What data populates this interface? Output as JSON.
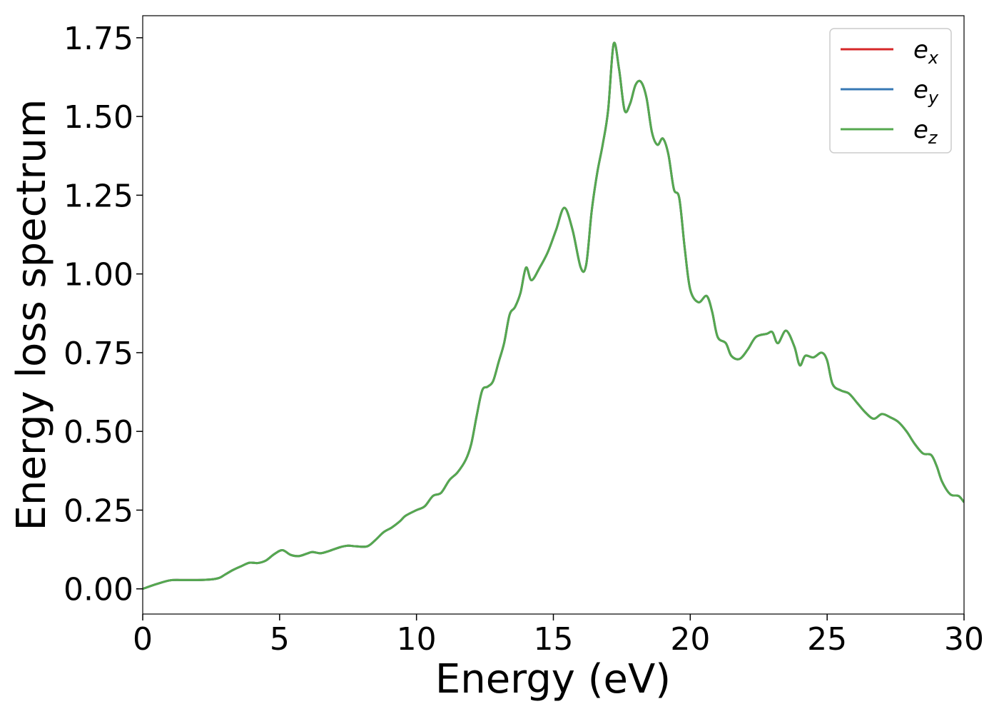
{
  "chart_data": {
    "type": "line",
    "title": "",
    "xlabel": "Energy (eV)",
    "ylabel": "Energy loss spectrum",
    "xlim": [
      0,
      30
    ],
    "ylim": [
      -0.08,
      1.82
    ],
    "xticks": [
      0,
      5,
      10,
      15,
      20,
      25,
      30
    ],
    "xtick_labels": [
      "0",
      "5",
      "10",
      "15",
      "20",
      "25",
      "30"
    ],
    "yticks": [
      0.0,
      0.25,
      0.5,
      0.75,
      1.0,
      1.25,
      1.5,
      1.75
    ],
    "ytick_labels": [
      "0.00",
      "0.25",
      "0.50",
      "0.75",
      "1.00",
      "1.25",
      "1.50",
      "1.75"
    ],
    "grid": false,
    "legend": {
      "placement": "top-right",
      "entries": [
        {
          "base": "e",
          "sub": "x",
          "color": "#d62728"
        },
        {
          "base": "e",
          "sub": "y",
          "color": "#3778b4"
        },
        {
          "base": "e",
          "sub": "z",
          "color": "#55a84f"
        }
      ]
    },
    "x": [
      0,
      0.5,
      1.0,
      1.5,
      2.0,
      2.5,
      2.8,
      3.0,
      3.3,
      3.6,
      3.9,
      4.2,
      4.5,
      4.8,
      5.1,
      5.4,
      5.7,
      6.0,
      6.2,
      6.5,
      6.8,
      7.2,
      7.5,
      7.8,
      8.2,
      8.5,
      8.8,
      9.1,
      9.4,
      9.6,
      10.0,
      10.3,
      10.6,
      10.9,
      11.2,
      11.5,
      11.8,
      12.0,
      12.2,
      12.4,
      12.6,
      12.8,
      13.0,
      13.2,
      13.4,
      13.6,
      13.8,
      14.0,
      14.2,
      14.5,
      14.8,
      15.1,
      15.4,
      15.7,
      16.0,
      16.2,
      16.4,
      16.6,
      16.8,
      17.0,
      17.2,
      17.4,
      17.6,
      17.8,
      18.0,
      18.2,
      18.4,
      18.6,
      18.8,
      19.0,
      19.2,
      19.4,
      19.6,
      19.8,
      20.0,
      20.3,
      20.6,
      20.8,
      21.0,
      21.3,
      21.5,
      21.8,
      22.1,
      22.4,
      22.8,
      23.0,
      23.2,
      23.5,
      23.8,
      24.0,
      24.2,
      24.5,
      24.8,
      25.0,
      25.2,
      25.5,
      25.8,
      26.1,
      26.4,
      26.7,
      27.0,
      27.3,
      27.6,
      27.9,
      28.2,
      28.5,
      28.8,
      29.0,
      29.2,
      29.5,
      29.8,
      30.0
    ],
    "series": [
      {
        "name": "e_x",
        "color": "#d62728",
        "values": [
          0.0,
          0.015,
          0.027,
          0.028,
          0.028,
          0.03,
          0.035,
          0.045,
          0.06,
          0.072,
          0.083,
          0.082,
          0.09,
          0.11,
          0.123,
          0.108,
          0.104,
          0.112,
          0.117,
          0.113,
          0.12,
          0.132,
          0.137,
          0.135,
          0.135,
          0.155,
          0.18,
          0.195,
          0.215,
          0.232,
          0.25,
          0.262,
          0.295,
          0.305,
          0.345,
          0.37,
          0.41,
          0.46,
          0.55,
          0.63,
          0.642,
          0.66,
          0.72,
          0.78,
          0.87,
          0.895,
          0.94,
          1.02,
          0.98,
          1.02,
          1.07,
          1.14,
          1.21,
          1.14,
          1.02,
          1.03,
          1.2,
          1.32,
          1.41,
          1.52,
          1.73,
          1.65,
          1.52,
          1.54,
          1.6,
          1.61,
          1.56,
          1.45,
          1.41,
          1.43,
          1.38,
          1.27,
          1.24,
          1.08,
          0.95,
          0.91,
          0.93,
          0.88,
          0.8,
          0.78,
          0.74,
          0.73,
          0.76,
          0.8,
          0.81,
          0.815,
          0.78,
          0.82,
          0.77,
          0.71,
          0.74,
          0.735,
          0.75,
          0.725,
          0.65,
          0.63,
          0.62,
          0.59,
          0.56,
          0.54,
          0.555,
          0.545,
          0.53,
          0.5,
          0.46,
          0.43,
          0.425,
          0.39,
          0.34,
          0.3,
          0.295,
          0.275
        ]
      },
      {
        "name": "e_y",
        "color": "#3778b4",
        "values": [
          0.0,
          0.015,
          0.027,
          0.028,
          0.028,
          0.03,
          0.035,
          0.045,
          0.06,
          0.072,
          0.083,
          0.082,
          0.09,
          0.11,
          0.123,
          0.108,
          0.104,
          0.112,
          0.117,
          0.113,
          0.12,
          0.132,
          0.137,
          0.135,
          0.135,
          0.155,
          0.18,
          0.195,
          0.215,
          0.232,
          0.25,
          0.262,
          0.295,
          0.305,
          0.345,
          0.37,
          0.41,
          0.46,
          0.55,
          0.63,
          0.642,
          0.66,
          0.72,
          0.78,
          0.87,
          0.895,
          0.94,
          1.02,
          0.98,
          1.02,
          1.07,
          1.14,
          1.21,
          1.14,
          1.02,
          1.03,
          1.2,
          1.32,
          1.41,
          1.52,
          1.73,
          1.65,
          1.52,
          1.54,
          1.6,
          1.61,
          1.56,
          1.45,
          1.41,
          1.43,
          1.38,
          1.27,
          1.24,
          1.08,
          0.95,
          0.91,
          0.93,
          0.88,
          0.8,
          0.78,
          0.74,
          0.73,
          0.76,
          0.8,
          0.81,
          0.815,
          0.78,
          0.82,
          0.77,
          0.71,
          0.74,
          0.735,
          0.75,
          0.725,
          0.65,
          0.63,
          0.62,
          0.59,
          0.56,
          0.54,
          0.555,
          0.545,
          0.53,
          0.5,
          0.46,
          0.43,
          0.425,
          0.39,
          0.34,
          0.3,
          0.295,
          0.275
        ]
      },
      {
        "name": "e_z",
        "color": "#55a84f",
        "values": [
          0.0,
          0.015,
          0.027,
          0.028,
          0.028,
          0.03,
          0.035,
          0.045,
          0.06,
          0.072,
          0.083,
          0.082,
          0.09,
          0.11,
          0.123,
          0.108,
          0.104,
          0.112,
          0.117,
          0.113,
          0.12,
          0.132,
          0.137,
          0.135,
          0.135,
          0.155,
          0.18,
          0.195,
          0.215,
          0.232,
          0.25,
          0.262,
          0.295,
          0.305,
          0.345,
          0.37,
          0.41,
          0.46,
          0.55,
          0.63,
          0.642,
          0.66,
          0.72,
          0.78,
          0.87,
          0.895,
          0.94,
          1.02,
          0.98,
          1.02,
          1.07,
          1.14,
          1.21,
          1.14,
          1.02,
          1.03,
          1.2,
          1.32,
          1.41,
          1.52,
          1.73,
          1.65,
          1.52,
          1.54,
          1.6,
          1.61,
          1.56,
          1.45,
          1.41,
          1.43,
          1.38,
          1.27,
          1.24,
          1.08,
          0.95,
          0.91,
          0.93,
          0.88,
          0.8,
          0.78,
          0.74,
          0.73,
          0.76,
          0.8,
          0.81,
          0.815,
          0.78,
          0.82,
          0.77,
          0.71,
          0.74,
          0.735,
          0.75,
          0.725,
          0.65,
          0.63,
          0.62,
          0.59,
          0.56,
          0.54,
          0.555,
          0.545,
          0.53,
          0.5,
          0.46,
          0.43,
          0.425,
          0.39,
          0.34,
          0.3,
          0.295,
          0.275
        ]
      }
    ]
  }
}
